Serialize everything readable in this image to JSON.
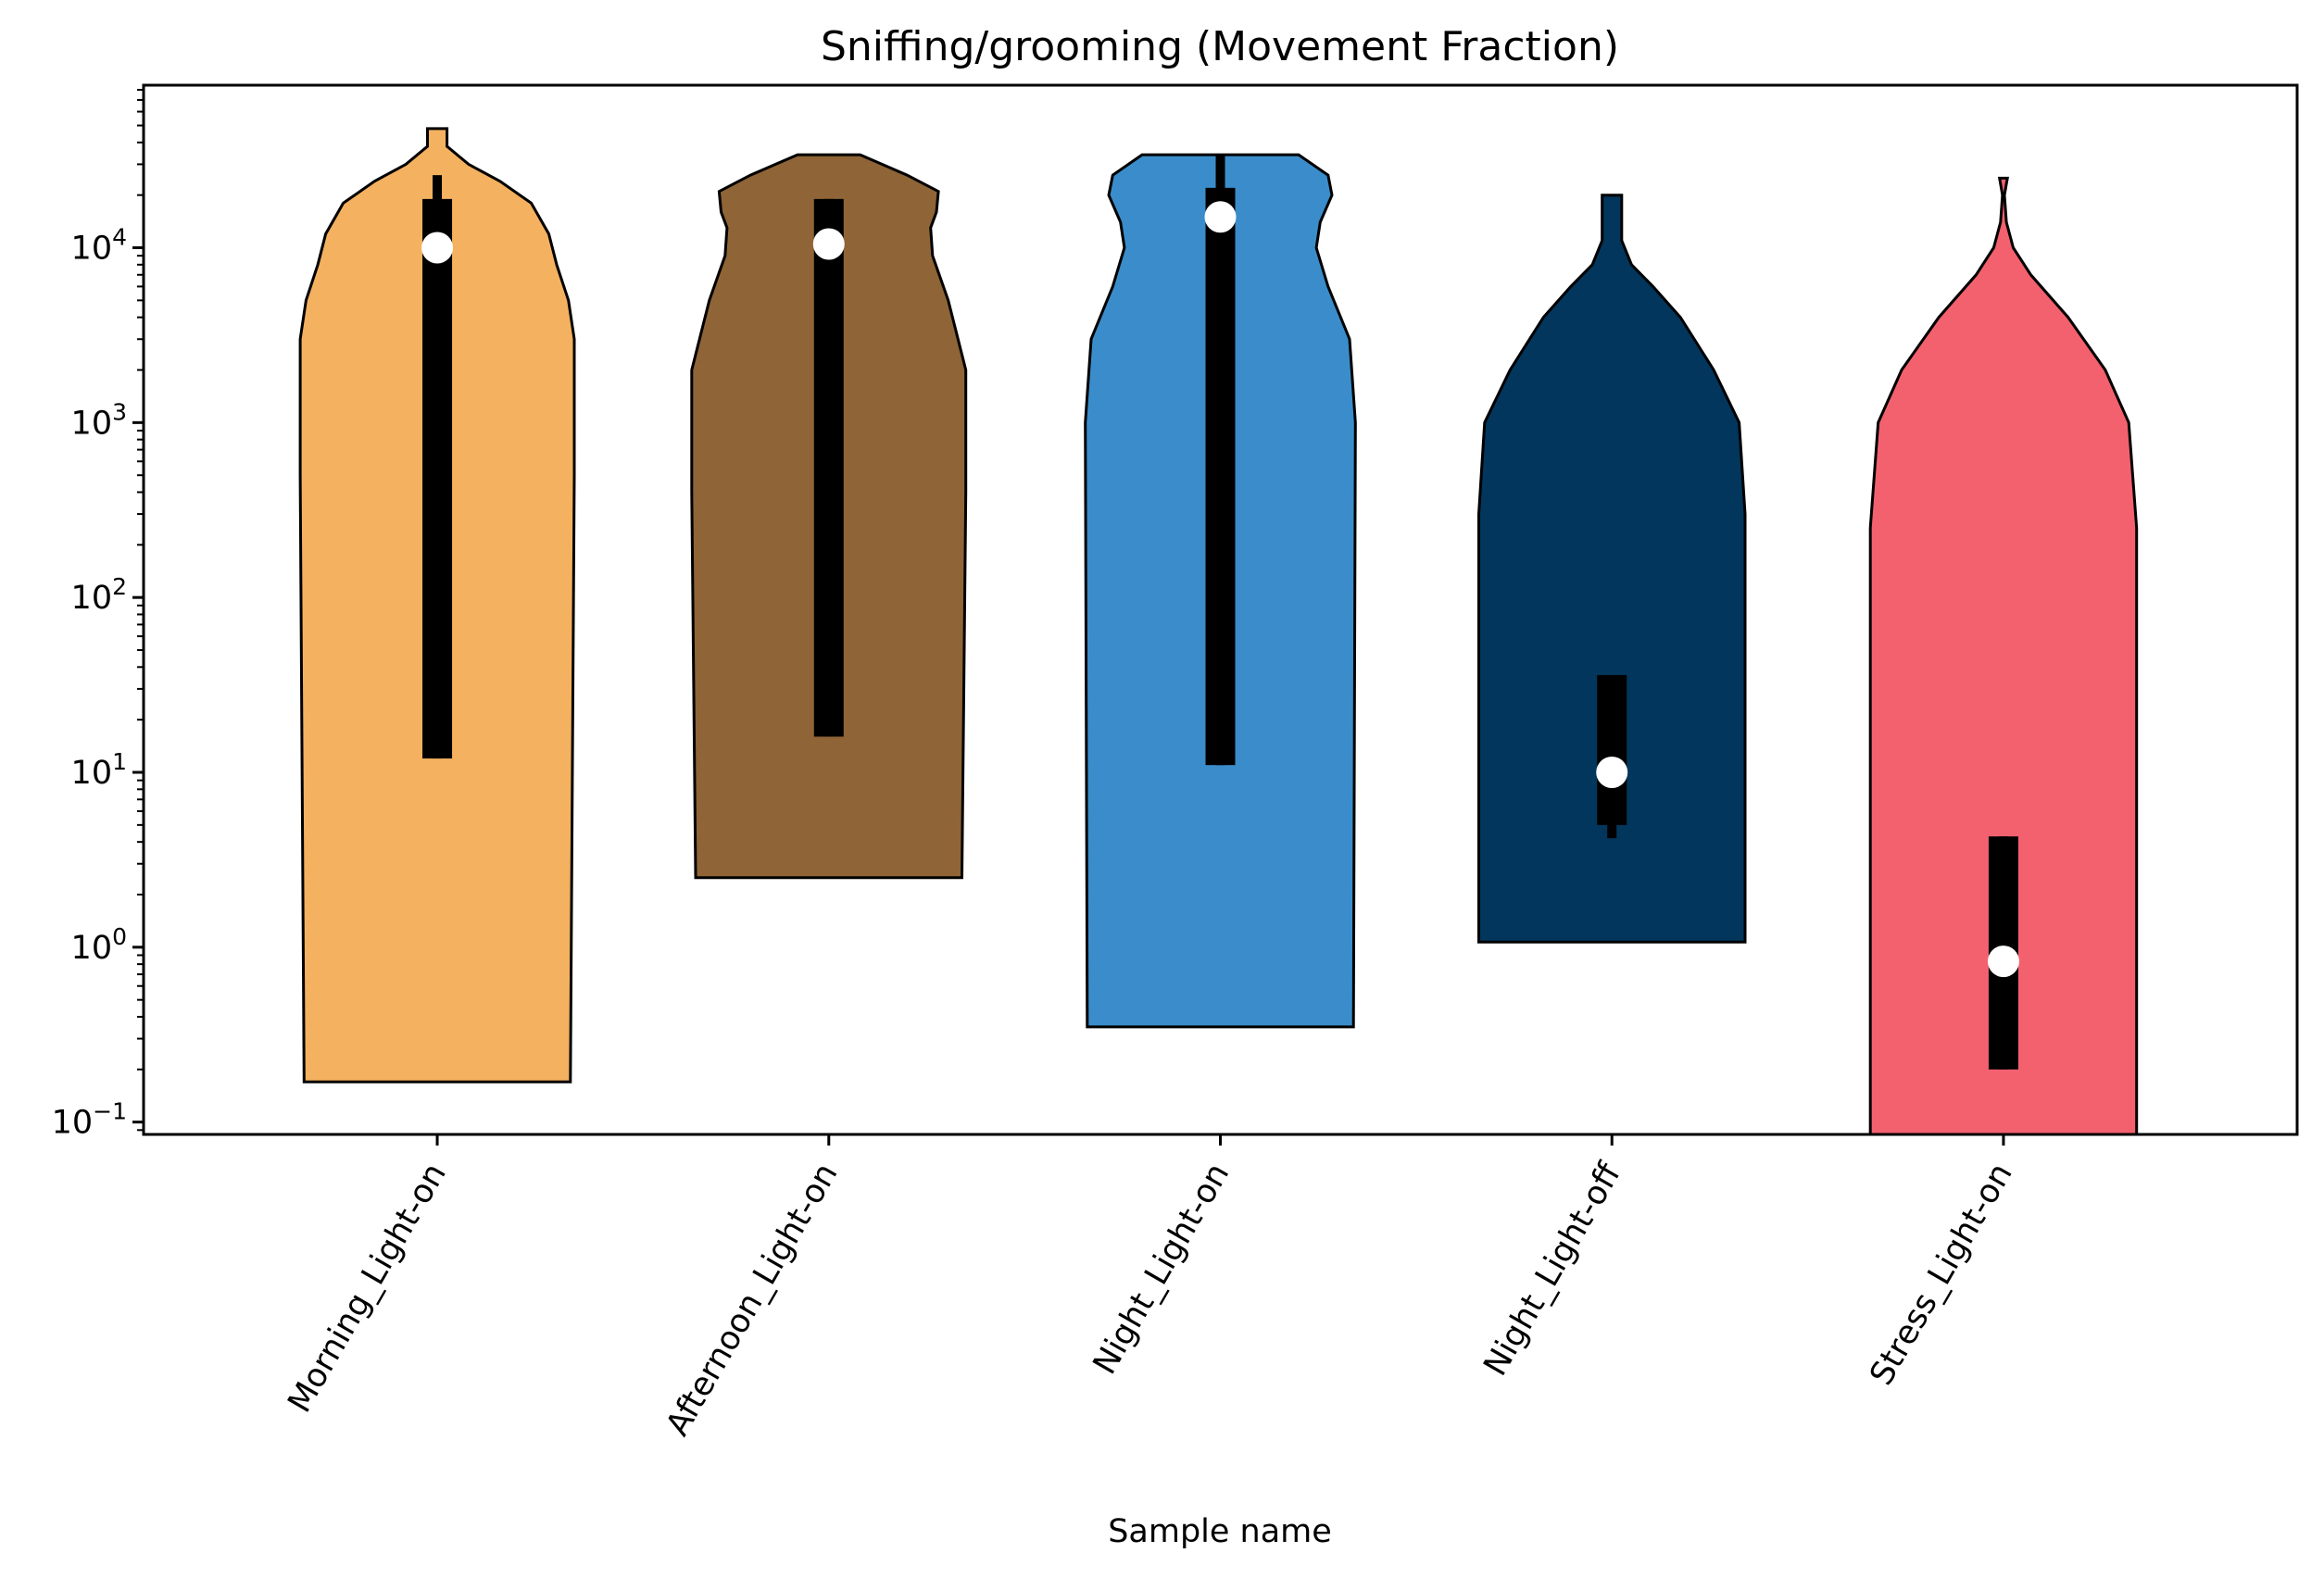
{
  "chart_data": {
    "type": "violin",
    "title": "Sniffing/grooming (Movement Fraction)",
    "xlabel": "Sample name",
    "ylabel": "",
    "yscale": "log",
    "ylim": [
      0.085,
      85000
    ],
    "yticks": [
      {
        "value": 0.1,
        "label": "10",
        "exp": "−1"
      },
      {
        "value": 1,
        "label": "10",
        "exp": "0"
      },
      {
        "value": 10,
        "label": "10",
        "exp": "1"
      },
      {
        "value": 100,
        "label": "10",
        "exp": "2"
      },
      {
        "value": 1000,
        "label": "10",
        "exp": "3"
      },
      {
        "value": 10000,
        "label": "10",
        "exp": "4"
      }
    ],
    "categories": [
      "Morning_Light-on",
      "Afternoon_Light-on",
      "Night_Light-on",
      "Night_Light-off",
      "Stress_Light-on"
    ],
    "series": [
      {
        "color": "#F4B160",
        "min": 0.17,
        "max": 48000,
        "q1": 12,
        "q3": 19000,
        "median": 10000,
        "whisker_low": 12,
        "whisker_high": 26000,
        "profile": [
          [
            0.17,
            0.68
          ],
          [
            500,
            0.7
          ],
          [
            3000,
            0.7
          ],
          [
            5000,
            0.67
          ],
          [
            8000,
            0.61
          ],
          [
            12000,
            0.57
          ],
          [
            18000,
            0.48
          ],
          [
            24000,
            0.32
          ],
          [
            30000,
            0.16
          ],
          [
            38000,
            0.05
          ],
          [
            48000,
            0.05
          ]
        ]
      },
      {
        "color": "#8F6436",
        "min": 2.5,
        "max": 34000,
        "q1": 16,
        "q3": 19000,
        "median": 10500,
        "whisker_low": 16,
        "whisker_high": 19000,
        "profile": [
          [
            2.5,
            0.68
          ],
          [
            400,
            0.7
          ],
          [
            2000,
            0.7
          ],
          [
            5000,
            0.61
          ],
          [
            9000,
            0.53
          ],
          [
            13000,
            0.52
          ],
          [
            16000,
            0.55
          ],
          [
            21000,
            0.56
          ],
          [
            26000,
            0.4
          ],
          [
            34000,
            0.16
          ]
        ]
      },
      {
        "color": "#3A8DCA",
        "min": 0.35,
        "max": 34000,
        "q1": 11,
        "q3": 22000,
        "median": 15000,
        "whisker_low": 11,
        "whisker_high": 34000,
        "profile": [
          [
            0.35,
            0.68
          ],
          [
            1000,
            0.69
          ],
          [
            3000,
            0.66
          ],
          [
            6000,
            0.55
          ],
          [
            10000,
            0.49
          ],
          [
            14000,
            0.51
          ],
          [
            20000,
            0.57
          ],
          [
            26000,
            0.55
          ],
          [
            34000,
            0.4
          ]
        ]
      },
      {
        "color": "#02365C",
        "min": 1.07,
        "max": 20000,
        "q1": 5,
        "q3": 36,
        "median": 10,
        "whisker_low": 4.2,
        "whisker_high": 36,
        "profile": [
          [
            1.07,
            0.68
          ],
          [
            300,
            0.68
          ],
          [
            1000,
            0.65
          ],
          [
            2000,
            0.52
          ],
          [
            4000,
            0.35
          ],
          [
            6000,
            0.21
          ],
          [
            8000,
            0.1
          ],
          [
            11000,
            0.05
          ],
          [
            16000,
            0.05
          ],
          [
            20000,
            0.05
          ]
        ]
      },
      {
        "color": "#F3616F",
        "min": 0.085,
        "max": 25000,
        "q1": 0.2,
        "q3": 4.3,
        "median": 0.83,
        "whisker_low": 0.2,
        "whisker_high": 4.3,
        "profile": [
          [
            0.085,
            0.68
          ],
          [
            250,
            0.68
          ],
          [
            1000,
            0.64
          ],
          [
            2000,
            0.52
          ],
          [
            4000,
            0.33
          ],
          [
            7000,
            0.14
          ],
          [
            10000,
            0.05
          ],
          [
            14000,
            0.015
          ],
          [
            20000,
            0.005
          ],
          [
            25000,
            0.02
          ]
        ]
      }
    ]
  }
}
